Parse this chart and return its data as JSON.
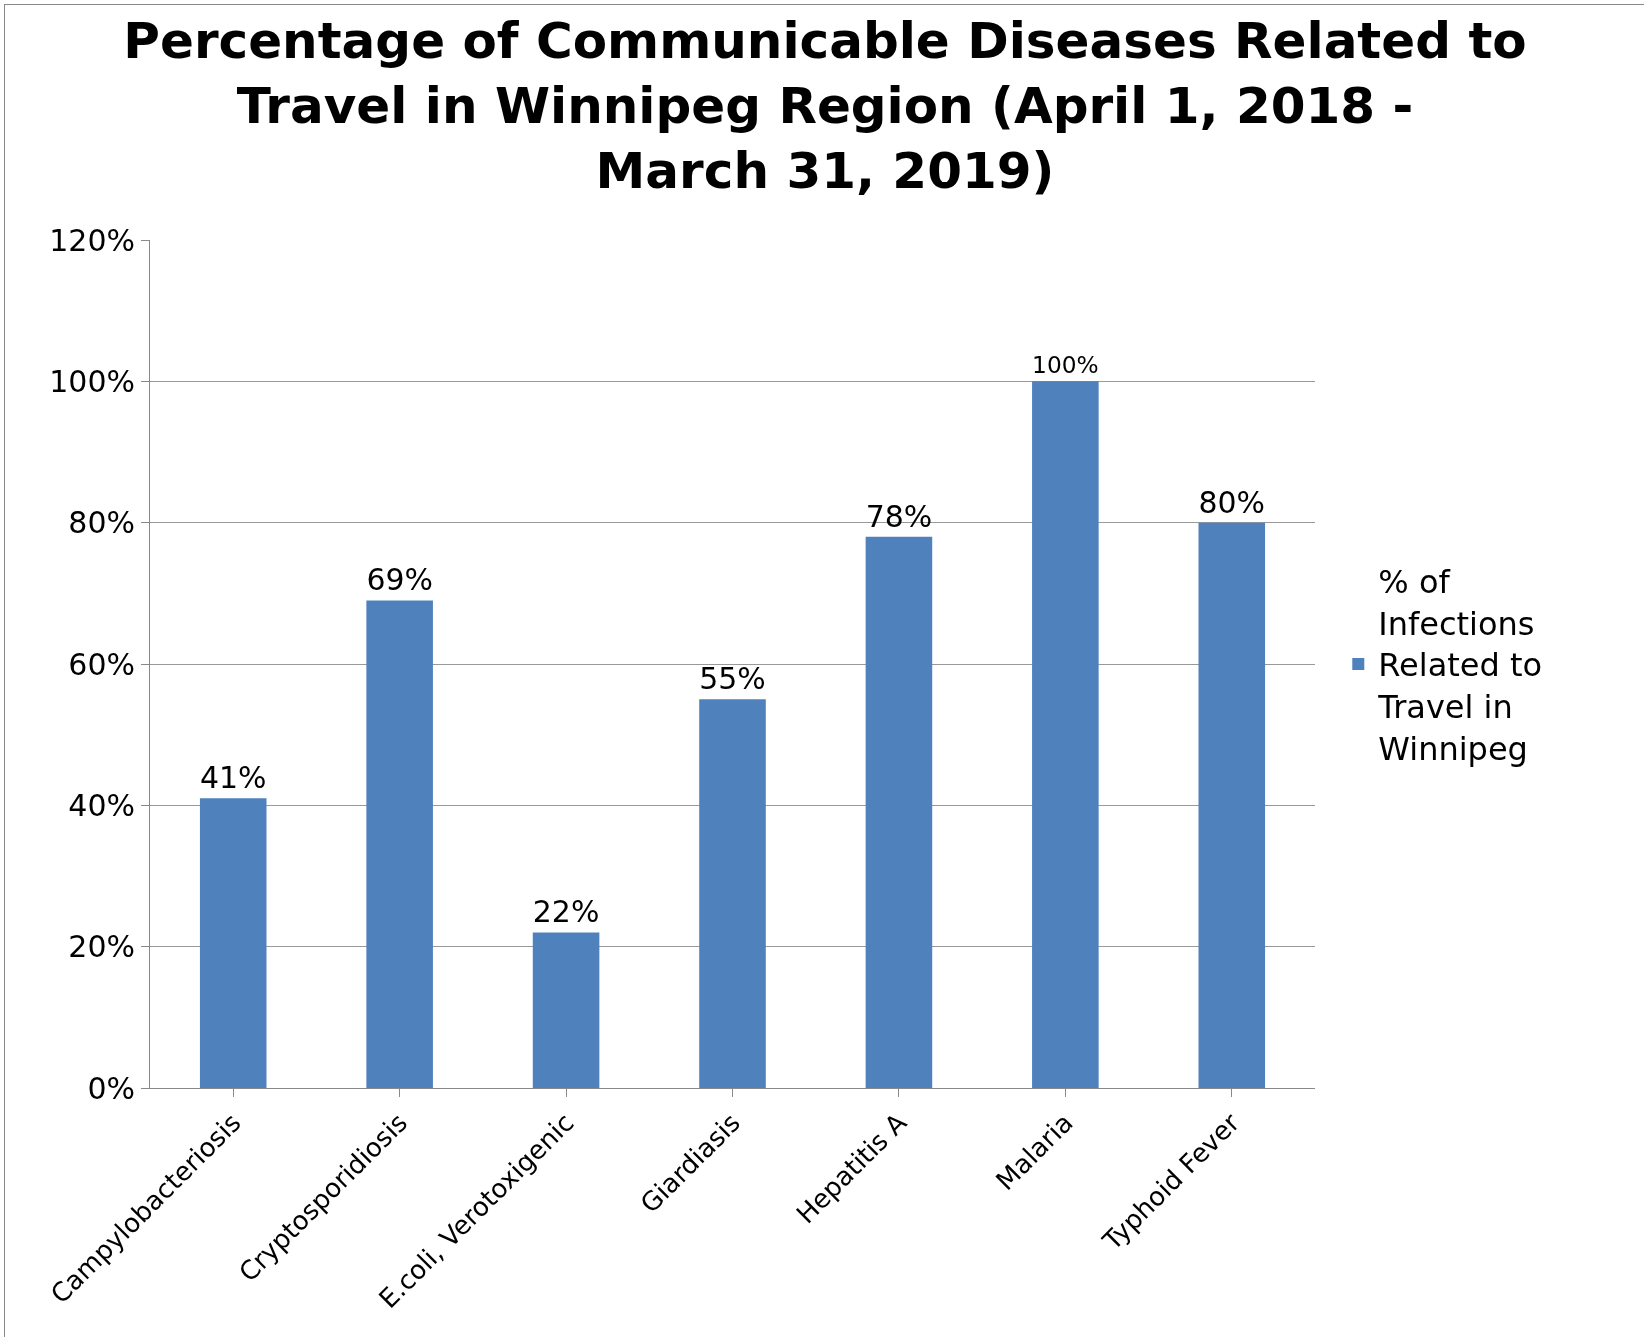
{
  "chart_data": {
    "type": "bar",
    "title": "Percentage of Communicable Diseases Related to Travel in Winnipeg Region (April 1, 2018 - March 31, 2019)",
    "categories": [
      "Campylobacteriosis",
      "Cryptosporidiosis",
      "E.coli, Verotoxigenic",
      "Giardiasis",
      "Hepatitis A",
      "Malaria",
      "Typhoid Fever"
    ],
    "series": [
      {
        "name": "% of Infections Related to Travel in Winnipeg",
        "color": "#4f81bd",
        "values": [
          41,
          69,
          22,
          55,
          78,
          100,
          80
        ],
        "value_labels": [
          "41%",
          "69%",
          "22%",
          "55%",
          "78%",
          "100%",
          "80%"
        ]
      }
    ],
    "ylim": [
      0,
      120
    ],
    "yticks": [
      {
        "value": 0,
        "label": "0%"
      },
      {
        "value": 20,
        "label": "20%"
      },
      {
        "value": 40,
        "label": "40%"
      },
      {
        "value": 60,
        "label": "60%"
      },
      {
        "value": 80,
        "label": "80%"
      },
      {
        "value": 100,
        "label": "100%"
      },
      {
        "value": 120,
        "label": "120%"
      }
    ],
    "grid": "y",
    "legend": "right"
  }
}
